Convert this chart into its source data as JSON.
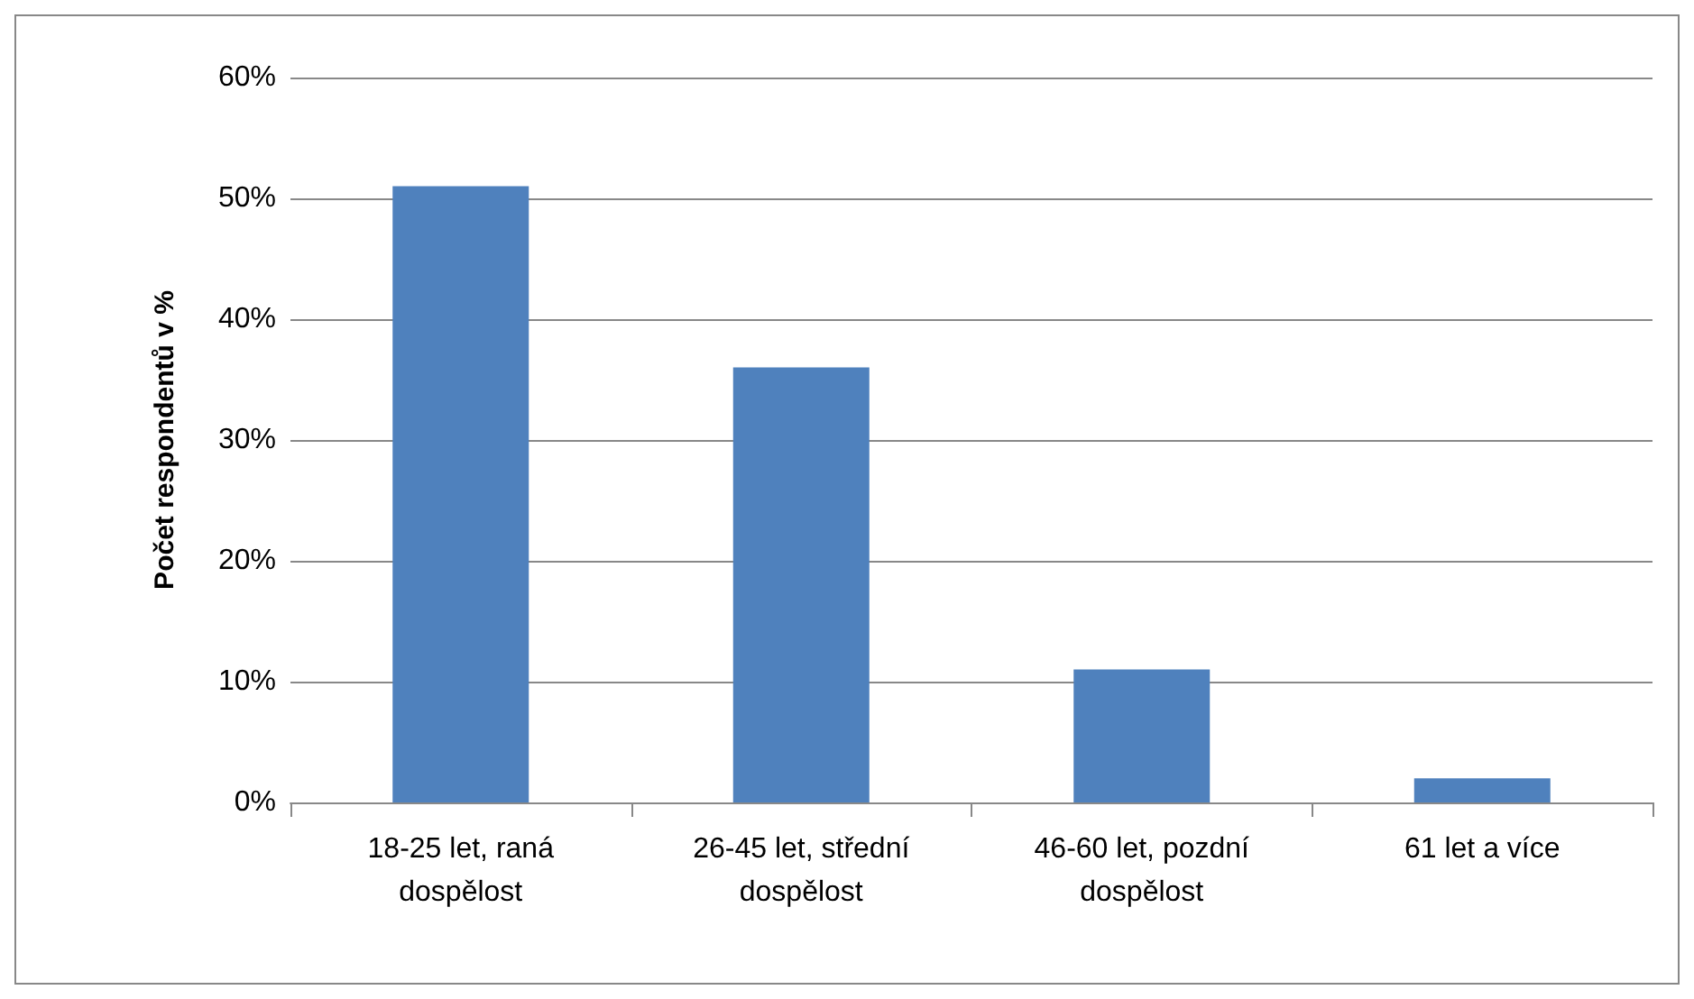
{
  "chart_data": {
    "type": "bar",
    "ylabel": "Počet respondentů v %",
    "categories": [
      "18-25 let, raná\ndospělost",
      "26-45 let, střední\ndospělost",
      "46-60 let, pozdní\ndospělost",
      "61 let a více"
    ],
    "values": [
      51,
      36,
      11,
      2
    ],
    "color": "#4f81bd",
    "ylim": [
      0,
      60
    ],
    "yticks": [
      {
        "value": 0,
        "label": "0%"
      },
      {
        "value": 10,
        "label": "10%"
      },
      {
        "value": 20,
        "label": "20%"
      },
      {
        "value": 30,
        "label": "30%"
      },
      {
        "value": 40,
        "label": "40%"
      },
      {
        "value": 50,
        "label": "50%"
      },
      {
        "value": 60,
        "label": "60%"
      }
    ],
    "grid": "y"
  }
}
